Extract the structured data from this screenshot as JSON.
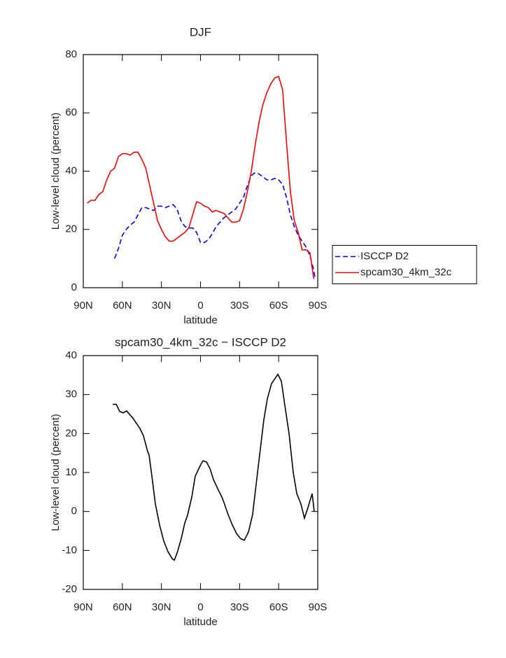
{
  "chart_data": [
    {
      "type": "line",
      "title": "DJF",
      "xlabel": "latitude",
      "ylabel": "Low-level cloud (percent)",
      "xlim": [
        90,
        -90
      ],
      "xticks": [
        {
          "value": 90,
          "label": "90N"
        },
        {
          "value": 60,
          "label": "60N"
        },
        {
          "value": 30,
          "label": "30N"
        },
        0,
        {
          "value": -30,
          "label": "30S"
        },
        {
          "value": -60,
          "label": "60S"
        },
        {
          "value": -90,
          "label": "90S"
        }
      ],
      "ylim": [
        0,
        80
      ],
      "yticks": [
        0,
        20,
        40,
        60,
        80
      ],
      "legend": "outside right",
      "series": [
        {
          "name": "ISCCP D2",
          "color": "#0000ff",
          "style": "dashed",
          "x": [
            66,
            63,
            60,
            57,
            54,
            51,
            48,
            45,
            42,
            39,
            36,
            33,
            30,
            27,
            24,
            21,
            18,
            15,
            12,
            9,
            6,
            3,
            0,
            -3,
            -6,
            -9,
            -12,
            -15,
            -18,
            -21,
            -24,
            -27,
            -30,
            -33,
            -36,
            -39,
            -42,
            -45,
            -48,
            -51,
            -54,
            -57,
            -60,
            -63,
            -66,
            -69,
            -72,
            -75,
            -78,
            -81,
            -84,
            -87,
            -88
          ],
          "values": [
            10,
            13.5,
            18,
            20,
            21.5,
            22.5,
            25,
            27.5,
            27.5,
            27,
            26.5,
            28,
            28,
            27.5,
            28,
            28.5,
            27,
            23,
            21,
            20.5,
            20.5,
            19,
            15.5,
            15.5,
            16.5,
            18.5,
            21,
            22.5,
            24,
            25,
            26,
            27,
            29,
            31,
            35,
            38.5,
            39.5,
            39,
            38,
            37,
            37,
            37.5,
            37,
            35.5,
            31,
            25,
            21,
            18,
            16,
            14,
            11,
            6,
            3
          ]
        },
        {
          "name": "spcam30_4km_32c",
          "color": "#ff0000",
          "style": "solid",
          "x": [
            87,
            84,
            81,
            78,
            75,
            72,
            69,
            66,
            63,
            60,
            57,
            54,
            51,
            48,
            45,
            42,
            39,
            36,
            33,
            30,
            27,
            24,
            21,
            18,
            15,
            12,
            9,
            6,
            3,
            0,
            -3,
            -6,
            -9,
            -12,
            -15,
            -18,
            -21,
            -24,
            -27,
            -30,
            -33,
            -36,
            -39,
            -42,
            -45,
            -48,
            -51,
            -54,
            -57,
            -60,
            -63,
            -66,
            -69,
            -72,
            -75,
            -78,
            -81,
            -84,
            -87
          ],
          "values": [
            29,
            30,
            30,
            32,
            33,
            37,
            40,
            41,
            45,
            46,
            46,
            45.5,
            46.5,
            46.5,
            44,
            41,
            35,
            29,
            23,
            20,
            17.5,
            16,
            16,
            17,
            18,
            19,
            20.5,
            25,
            29.5,
            29,
            28,
            27.5,
            26,
            26.5,
            26,
            25.5,
            24,
            22.5,
            22.5,
            23,
            27,
            33,
            40,
            49,
            57,
            63,
            67,
            70,
            72,
            72.5,
            68,
            50,
            33,
            23,
            19,
            13,
            13,
            12,
            3
          ]
        }
      ]
    },
    {
      "type": "line",
      "title": "spcam30_4km_32c − ISCCP D2",
      "xlabel": "latitude",
      "ylabel": "Low-level cloud (percent)",
      "xlim": [
        90,
        -90
      ],
      "xticks": [
        {
          "value": 90,
          "label": "90N"
        },
        {
          "value": 60,
          "label": "60N"
        },
        {
          "value": 30,
          "label": "30N"
        },
        0,
        {
          "value": -30,
          "label": "30S"
        },
        {
          "value": -60,
          "label": "60S"
        },
        {
          "value": -90,
          "label": "90S"
        }
      ],
      "ylim": [
        -20,
        40
      ],
      "yticks": [
        -20,
        -10,
        0,
        10,
        20,
        30,
        40
      ],
      "series": [
        {
          "color": "#000000",
          "style": "solid",
          "x": [
            67.4,
            64.7,
            62.1,
            59.4,
            56.7,
            51.8,
            46.5,
            43.8,
            40.6,
            39.5,
            37.3,
            34.7,
            31.4,
            28.2,
            25,
            21.8,
            20.1,
            18,
            14.8,
            12.1,
            10,
            6.7,
            4.1,
            0.9,
            -1.8,
            -4.6,
            -7.3,
            -9.9,
            -13.7,
            -16.4,
            -18,
            -21.2,
            -24.5,
            -27.7,
            -30.9,
            -33.6,
            -36.8,
            -40,
            -42.2,
            -45.4,
            -48.6,
            -51.3,
            -54.5,
            -57.2,
            -59.4,
            -62.1,
            -64.8,
            -68,
            -71.2,
            -73.9,
            -77.1,
            -79.8,
            -82.5,
            -85.7,
            -87.3
          ],
          "values": [
            27.5,
            27.5,
            25.7,
            25.3,
            25.8,
            23.9,
            21.3,
            19.4,
            15.4,
            14.5,
            9,
            2,
            -3.5,
            -7.6,
            -10.3,
            -12.1,
            -12.5,
            -10.7,
            -7,
            -3,
            -1,
            3.7,
            9,
            11.3,
            13,
            12.7,
            11,
            8.2,
            5.5,
            3.7,
            2.3,
            -0.8,
            -3.5,
            -5.7,
            -7,
            -7.4,
            -5.3,
            -0.8,
            5.5,
            14.5,
            23.5,
            28.9,
            32.8,
            34.1,
            35.2,
            33.4,
            27.1,
            19.9,
            10,
            4.6,
            1.9,
            -1.7,
            1,
            4.6,
            0
          ]
        }
      ]
    }
  ]
}
